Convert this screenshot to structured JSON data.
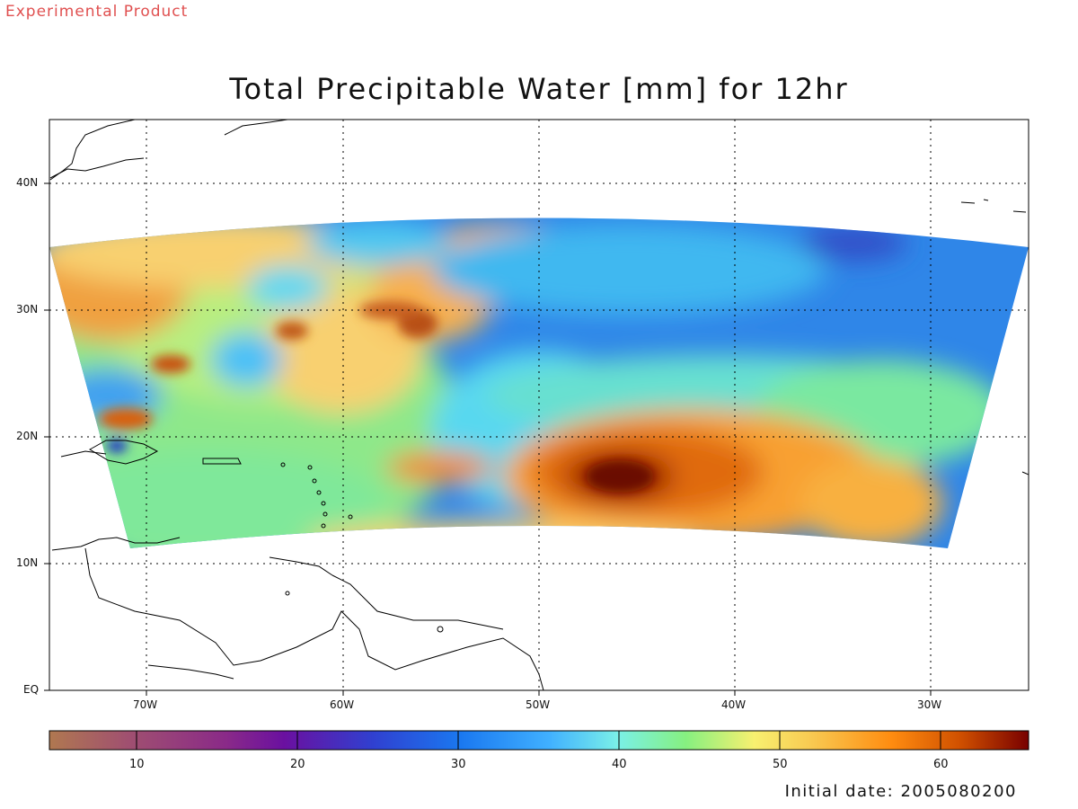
{
  "header": {
    "tag": "Experimental Product",
    "title": "Total Precipitable Water [mm] for 12hr"
  },
  "map": {
    "lat_labels": [
      "40N",
      "30N",
      "20N",
      "10N",
      "EQ"
    ],
    "lon_labels": [
      "70W",
      "60W",
      "50W",
      "40W",
      "30W"
    ],
    "features": [
      "tropical cyclone (TPW max near 17N 46W)",
      "Hispaniola",
      "Puerto Rico",
      "Lesser Antilles",
      "Venezuela",
      "Guianas"
    ]
  },
  "colorbar": {
    "tick_labels": [
      "10",
      "20",
      "30",
      "40",
      "50",
      "60"
    ],
    "min": 5,
    "max": 66,
    "stops": [
      "#b07850",
      "#a05070",
      "#7a1080",
      "#3a3ac8",
      "#1a78e8",
      "#58c8ff",
      "#7af0d0",
      "#8ef080",
      "#f8f070",
      "#f8c850",
      "#ff8c10",
      "#e06000",
      "#a01800",
      "#780000"
    ]
  },
  "footer": {
    "initial_date": "Initial date: 2005080200"
  }
}
